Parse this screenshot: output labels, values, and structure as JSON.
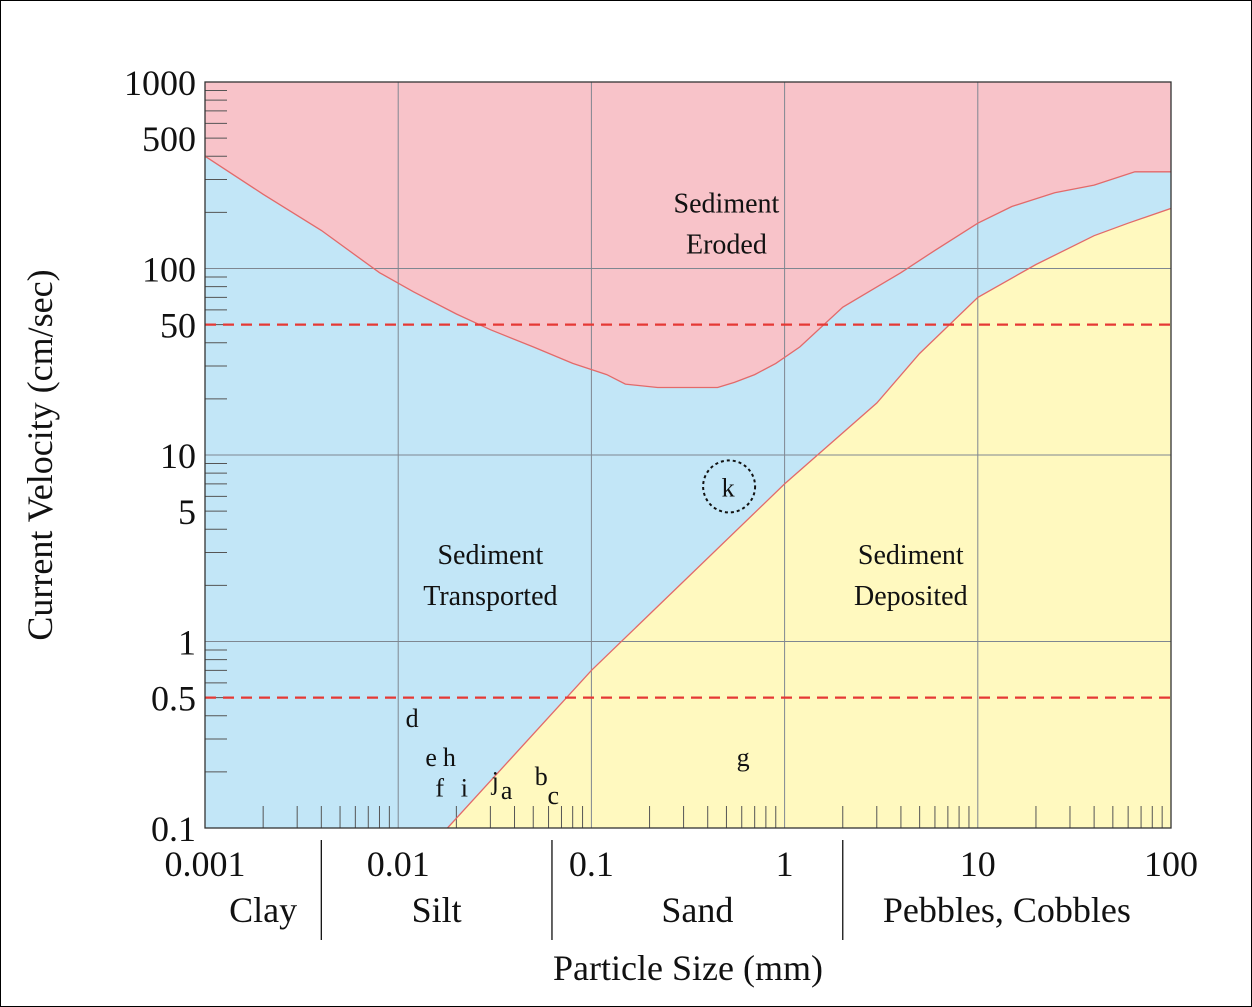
{
  "chart_data": {
    "type": "area",
    "title": "",
    "xlabel": "Particle Size (mm)",
    "ylabel": "Current Velocity (cm/sec)",
    "x_scale": "log",
    "y_scale": "log",
    "xlim": [
      0.001,
      100
    ],
    "ylim": [
      0.1,
      1000
    ],
    "grid": true,
    "x_ticks": [
      {
        "value": 0.001,
        "label": "0.001"
      },
      {
        "value": 0.01,
        "label": "0.01"
      },
      {
        "value": 0.1,
        "label": "0.1"
      },
      {
        "value": 1,
        "label": "1"
      },
      {
        "value": 10,
        "label": "10"
      },
      {
        "value": 100,
        "label": "100"
      }
    ],
    "y_ticks": [
      {
        "value": 1000,
        "label": "1000"
      },
      {
        "value": 500,
        "label": "500"
      },
      {
        "value": 100,
        "label": "100"
      },
      {
        "value": 50,
        "label": "50"
      },
      {
        "value": 10,
        "label": "10"
      },
      {
        "value": 5,
        "label": "5"
      },
      {
        "value": 1,
        "label": "1"
      },
      {
        "value": 0.5,
        "label": "0.5"
      },
      {
        "value": 0.1,
        "label": "0.1"
      }
    ],
    "size_classes": [
      {
        "label": "Clay",
        "from": 0.001,
        "to": 0.004
      },
      {
        "label": "Silt",
        "from": 0.004,
        "to": 0.0625
      },
      {
        "label": "Sand",
        "from": 0.0625,
        "to": 2
      },
      {
        "label": "Pebbles, Cobbles",
        "from": 2,
        "to": 100
      }
    ],
    "series": [
      {
        "name": "",
        "x": [
          0.001,
          0.002,
          0.004,
          0.008,
          0.012,
          0.02,
          0.03,
          0.05,
          0.08,
          0.12,
          0.15,
          0.22,
          0.3,
          0.45,
          0.55,
          0.7,
          0.9,
          1.2,
          2,
          4,
          6,
          10,
          15,
          25,
          40,
          65,
          100
        ],
        "y": [
          400,
          250,
          160,
          95,
          75,
          57,
          47,
          38,
          31,
          27,
          24,
          23,
          23,
          23,
          24.5,
          27,
          31,
          38,
          62,
          95,
          125,
          175,
          215,
          255,
          280,
          330,
          330
        ]
      },
      {
        "name": "",
        "x": [
          0.018,
          0.1,
          1,
          3,
          5,
          10,
          20,
          40,
          60,
          100
        ],
        "y": [
          0.1,
          0.7,
          7,
          19,
          35,
          70,
          105,
          150,
          175,
          210
        ]
      }
    ],
    "reference_lines": [
      {
        "axis": "y",
        "value": 50,
        "color": "#e53935",
        "style": "dashed"
      },
      {
        "axis": "y",
        "value": 0.5,
        "color": "#e53935",
        "style": "dashed"
      }
    ],
    "regions": [
      {
        "label": "Sediment Eroded",
        "lines": [
          "Sediment",
          "Eroded"
        ],
        "x": 0.5,
        "y": 200,
        "color": "#f8c3c9"
      },
      {
        "label": "Sediment Transported",
        "lines": [
          "Sediment",
          "Transported"
        ],
        "x": 0.03,
        "y": 2.6,
        "color": "#c2e6f7"
      },
      {
        "label": "Sediment Deposited",
        "lines": [
          "Sediment",
          "Deposited"
        ],
        "x": 4.5,
        "y": 2.6,
        "color": "#fff9bf"
      }
    ],
    "point_labels": [
      {
        "label": "d",
        "x": 0.0118,
        "y": 0.39
      },
      {
        "label": "e",
        "x": 0.0148,
        "y": 0.24
      },
      {
        "label": "h",
        "x": 0.0184,
        "y": 0.24
      },
      {
        "label": "f",
        "x": 0.0164,
        "y": 0.165
      },
      {
        "label": "i",
        "x": 0.022,
        "y": 0.165
      },
      {
        "label": "j",
        "x": 0.0318,
        "y": 0.18
      },
      {
        "label": "a",
        "x": 0.0364,
        "y": 0.16
      },
      {
        "label": "b",
        "x": 0.055,
        "y": 0.19
      },
      {
        "label": "c",
        "x": 0.0635,
        "y": 0.15
      },
      {
        "label": "g",
        "x": 0.61,
        "y": 0.24
      },
      {
        "label": "k",
        "x": 0.51,
        "y": 6.7,
        "circled": true
      }
    ],
    "colors": {
      "eroded": "#f8c3c9",
      "transported": "#c2e6f7",
      "deposited": "#fff9bf",
      "curve": "#e26a6a",
      "grid": "#7f8791",
      "reference": "#e53935"
    }
  }
}
